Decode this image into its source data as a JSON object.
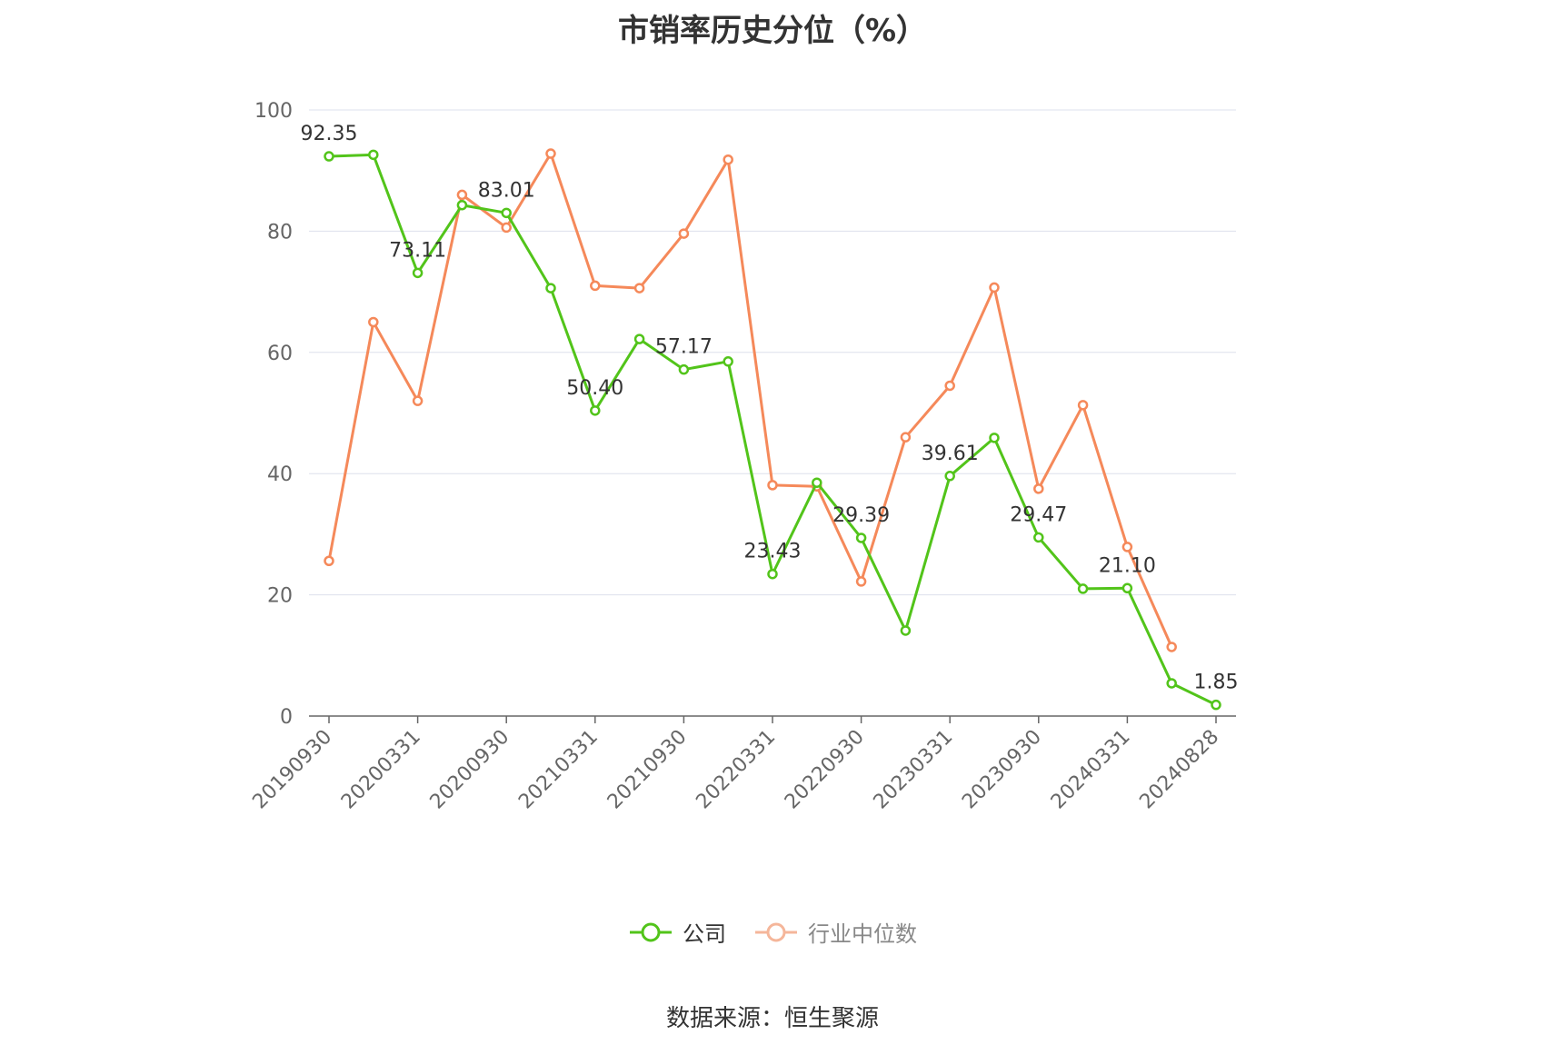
{
  "title": "市销率历史分位（%）",
  "source": "数据来源：恒生聚源",
  "legend": {
    "company": "公司",
    "industry": "行业中位数"
  },
  "colors": {
    "company": "#52c41a",
    "industry": "#f5895a",
    "grid": "#dde0ec",
    "axis": "#666666"
  },
  "chart_data": {
    "type": "line",
    "x": [
      "20190930",
      "20191231",
      "20200331",
      "20200630",
      "20200930",
      "20201231",
      "20210331",
      "20210630",
      "20210930",
      "20211231",
      "20220331",
      "20220630",
      "20220930",
      "20221231",
      "20230331",
      "20230630",
      "20230930",
      "20231231",
      "20240331",
      "20240630",
      "20240828"
    ],
    "x_tick_labels": [
      "20190930",
      "20200331",
      "20200930",
      "20210331",
      "20210930",
      "20220331",
      "20220930",
      "20230331",
      "20230930",
      "20240331",
      "20240828"
    ],
    "ylim": [
      0,
      100
    ],
    "y_ticks": [
      0,
      20,
      40,
      60,
      80,
      100
    ],
    "grid": true,
    "legend_position": "bottom",
    "series": [
      {
        "name": "公司",
        "values": [
          92.35,
          92.6,
          73.11,
          84.3,
          83.01,
          70.6,
          50.4,
          62.2,
          57.17,
          58.5,
          23.43,
          38.5,
          29.39,
          14.1,
          39.61,
          45.9,
          29.47,
          21.0,
          21.1,
          5.4,
          1.85
        ],
        "labels": [
          "92.35",
          "",
          "73.11",
          "",
          "83.01",
          "",
          "50.40",
          "",
          "57.17",
          "",
          "23.43",
          "",
          "29.39",
          "",
          "39.61",
          "",
          "29.47",
          "",
          "21.10",
          "",
          "1.85"
        ]
      },
      {
        "name": "行业中位数",
        "values": [
          25.6,
          65.0,
          52.0,
          86.0,
          80.6,
          92.8,
          71.0,
          70.6,
          79.6,
          91.8,
          38.1,
          37.9,
          22.2,
          46.0,
          54.5,
          70.7,
          37.5,
          51.3,
          27.9,
          11.4,
          null
        ]
      }
    ]
  }
}
